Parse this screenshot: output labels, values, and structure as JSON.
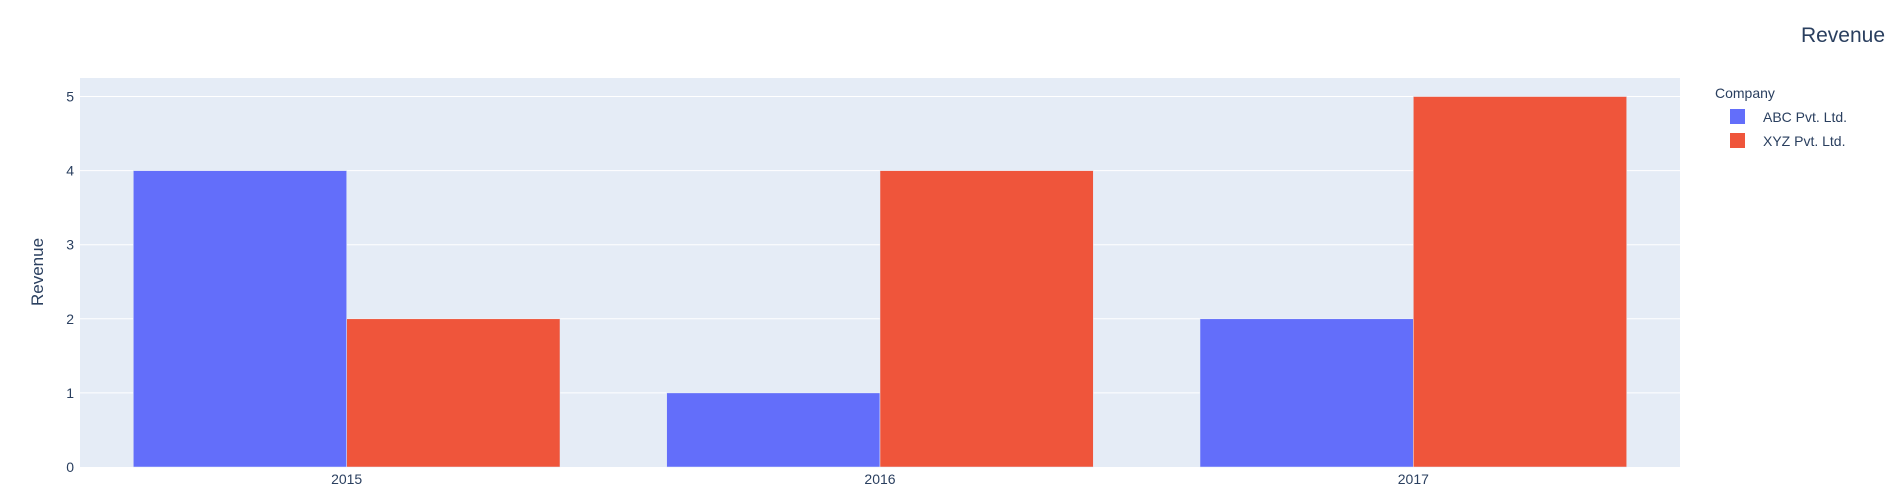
{
  "chart_data": {
    "type": "bar",
    "title": "Revenue",
    "xlabel": "",
    "ylabel": "Revenue",
    "categories": [
      "2015",
      "2016",
      "2017"
    ],
    "series": [
      {
        "name": "ABC Pvt. Ltd.",
        "values": [
          4,
          1,
          2
        ],
        "color": "#636efa"
      },
      {
        "name": "XYZ Pvt. Ltd.",
        "values": [
          2,
          4,
          5
        ],
        "color": "#ef553b"
      }
    ],
    "ylim": [
      0,
      5.25
    ],
    "yticks": [
      0,
      1,
      2,
      3,
      4,
      5
    ],
    "legend_title": "Company",
    "legend_position": "top-right",
    "grid": true,
    "plot_background": "#e5ecf6",
    "grid_color": "#ffffff",
    "text_color": "#2a3f5f"
  }
}
